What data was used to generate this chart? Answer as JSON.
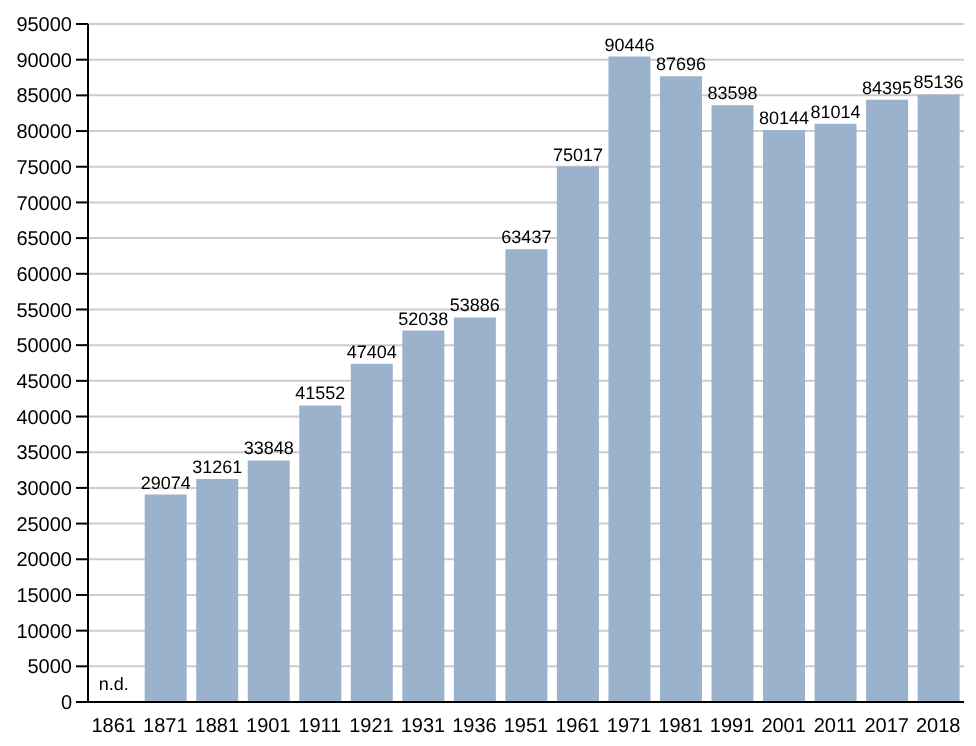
{
  "chart_data": {
    "type": "bar",
    "categories": [
      "1861",
      "1871",
      "1881",
      "1901",
      "1911",
      "1921",
      "1931",
      "1936",
      "1951",
      "1961",
      "1971",
      "1981",
      "1991",
      "2001",
      "2011",
      "2017",
      "2018"
    ],
    "values": [
      null,
      29074,
      31261,
      33848,
      41552,
      47404,
      52038,
      53886,
      63437,
      75017,
      90446,
      87696,
      83598,
      80144,
      81014,
      84395,
      85136
    ],
    "value_labels": [
      "n.d.",
      "29074",
      "31261",
      "33848",
      "41552",
      "47404",
      "52038",
      "53886",
      "63437",
      "75017",
      "90446",
      "87696",
      "83598",
      "80144",
      "81014",
      "84395",
      "85136"
    ],
    "color": "#9ab2cc",
    "ylim": [
      0,
      95000
    ],
    "yticks": [
      0,
      5000,
      10000,
      15000,
      20000,
      25000,
      30000,
      35000,
      40000,
      45000,
      50000,
      55000,
      60000,
      65000,
      70000,
      75000,
      80000,
      85000,
      90000,
      95000
    ],
    "grid": "y"
  }
}
